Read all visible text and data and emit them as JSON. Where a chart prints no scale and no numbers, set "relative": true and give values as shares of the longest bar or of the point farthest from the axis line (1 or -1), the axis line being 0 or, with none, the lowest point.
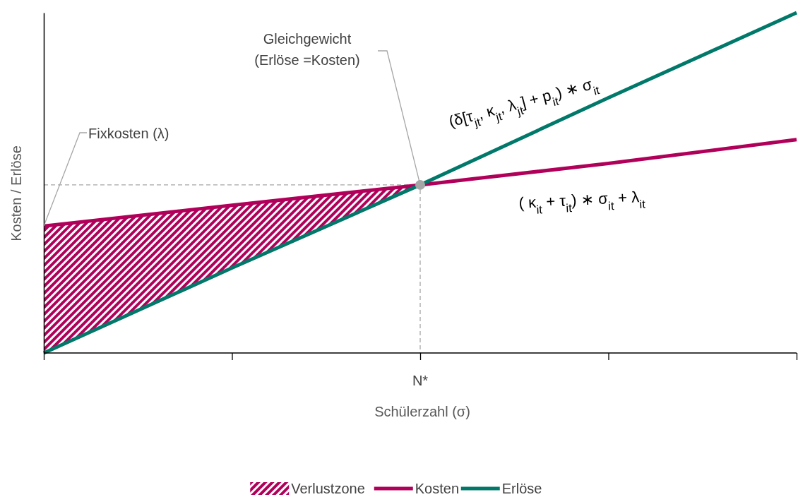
{
  "chart_data": {
    "type": "line",
    "relative": true,
    "xlabel": "Schülerzahl (σ)",
    "ylabel": "Kosten / Erlöse",
    "categories": [
      null,
      null,
      null,
      null,
      null
    ],
    "series": [
      {
        "name": "Verlustzone",
        "type": "area",
        "color": "#b0005a",
        "values": [
          0.373,
          0.434,
          0.494,
          null,
          null
        ]
      },
      {
        "name": "Kosten",
        "color": "#b0005a",
        "values": [
          0.373,
          0.434,
          0.494,
          0.557,
          0.627
        ]
      },
      {
        "name": "Erlöse",
        "color": "#00786a",
        "values": [
          0,
          0.25,
          0.494,
          0.75,
          1
        ]
      }
    ],
    "annotations": [
      "Fixkosten (λ)",
      "Gleichgewicht\n(Erlöse =Kosten)",
      "(δ[τ$_{jt}$, κ$_{jt}$, λ$_{jt}$] + p$_{it}$) ∗ σ$_{it}$",
      "( κ$_{it}$ +  τ$_{it}$) ∗ σ$_{it}$ + λ$_{it}$",
      "N*"
    ],
    "legend": "bottom",
    "line_style": "solid",
    "marker": "none"
  }
}
